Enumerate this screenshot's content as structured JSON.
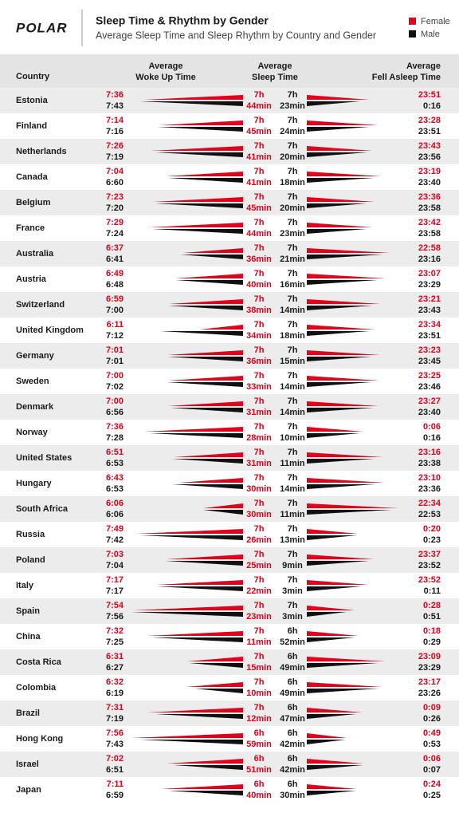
{
  "header": {
    "logo": "POLAR",
    "title": "Sleep Time & Rhythm by Gender",
    "subtitle": "Average Sleep Time and Sleep Rhythm by Country and Gender",
    "legend": [
      "Female",
      "Male"
    ]
  },
  "columns": {
    "country": "Country",
    "woke": [
      "Average",
      "Woke Up Time"
    ],
    "sleep": [
      "Average",
      "Sleep Time"
    ],
    "asleep": [
      "Average",
      "Fell Asleep Time"
    ]
  },
  "rows": [
    {
      "country": "Estonia",
      "woke": [
        "7:36",
        "7:43"
      ],
      "sleep": [
        [
          "7h",
          "44min"
        ],
        [
          "7h",
          "23min"
        ]
      ],
      "asleep": [
        "23:51",
        "0:16"
      ]
    },
    {
      "country": "Finland",
      "woke": [
        "7:14",
        "7:16"
      ],
      "sleep": [
        [
          "7h",
          "45min"
        ],
        [
          "7h",
          "24min"
        ]
      ],
      "asleep": [
        "23:28",
        "23:51"
      ]
    },
    {
      "country": "Netherlands",
      "woke": [
        "7:26",
        "7:19"
      ],
      "sleep": [
        [
          "7h",
          "41min"
        ],
        [
          "7h",
          "20min"
        ]
      ],
      "asleep": [
        "23:43",
        "23:56"
      ]
    },
    {
      "country": "Canada",
      "woke": [
        "7:04",
        "6:60"
      ],
      "sleep": [
        [
          "7h",
          "41min"
        ],
        [
          "7h",
          "18min"
        ]
      ],
      "asleep": [
        "23:19",
        "23:40"
      ]
    },
    {
      "country": "Belgium",
      "woke": [
        "7:23",
        "7:20"
      ],
      "sleep": [
        [
          "7h",
          "45min"
        ],
        [
          "7h",
          "20min"
        ]
      ],
      "asleep": [
        "23:36",
        "23:58"
      ]
    },
    {
      "country": "France",
      "woke": [
        "7:29",
        "7:24"
      ],
      "sleep": [
        [
          "7h",
          "44min"
        ],
        [
          "7h",
          "23min"
        ]
      ],
      "asleep": [
        "23:42",
        "23:58"
      ]
    },
    {
      "country": "Australia",
      "woke": [
        "6:37",
        "6:41"
      ],
      "sleep": [
        [
          "7h",
          "36min"
        ],
        [
          "7h",
          "21min"
        ]
      ],
      "asleep": [
        "22:58",
        "23:16"
      ]
    },
    {
      "country": "Austria",
      "woke": [
        "6:49",
        "6:48"
      ],
      "sleep": [
        [
          "7h",
          "40min"
        ],
        [
          "7h",
          "16min"
        ]
      ],
      "asleep": [
        "23:07",
        "23:29"
      ]
    },
    {
      "country": "Switzerland",
      "woke": [
        "6:59",
        "7:00"
      ],
      "sleep": [
        [
          "7h",
          "38min"
        ],
        [
          "7h",
          "14min"
        ]
      ],
      "asleep": [
        "23:21",
        "23:43"
      ]
    },
    {
      "country": "United Kingdom",
      "woke": [
        "6:11",
        "7:12"
      ],
      "sleep": [
        [
          "7h",
          "34min"
        ],
        [
          "7h",
          "18min"
        ]
      ],
      "asleep": [
        "23:34",
        "23:51"
      ]
    },
    {
      "country": "Germany",
      "woke": [
        "7:01",
        "7:01"
      ],
      "sleep": [
        [
          "7h",
          "36min"
        ],
        [
          "7h",
          "15min"
        ]
      ],
      "asleep": [
        "23:23",
        "23:45"
      ]
    },
    {
      "country": "Sweden",
      "woke": [
        "7:00",
        "7:02"
      ],
      "sleep": [
        [
          "7h",
          "33min"
        ],
        [
          "7h",
          "14min"
        ]
      ],
      "asleep": [
        "23:25",
        "23:46"
      ]
    },
    {
      "country": "Denmark",
      "woke": [
        "7:00",
        "6:56"
      ],
      "sleep": [
        [
          "7h",
          "31min"
        ],
        [
          "7h",
          "14min"
        ]
      ],
      "asleep": [
        "23:27",
        "23:40"
      ]
    },
    {
      "country": "Norway",
      "woke": [
        "7:36",
        "7:28"
      ],
      "sleep": [
        [
          "7h",
          "28min"
        ],
        [
          "7h",
          "10min"
        ]
      ],
      "asleep": [
        "0:06",
        "0:16"
      ]
    },
    {
      "country": "United States",
      "woke": [
        "6:51",
        "6:53"
      ],
      "sleep": [
        [
          "7h",
          "31min"
        ],
        [
          "7h",
          "11min"
        ]
      ],
      "asleep": [
        "23:16",
        "23:38"
      ]
    },
    {
      "country": "Hungary",
      "woke": [
        "6:43",
        "6:53"
      ],
      "sleep": [
        [
          "7h",
          "30min"
        ],
        [
          "7h",
          "14min"
        ]
      ],
      "asleep": [
        "23:10",
        "23:36"
      ]
    },
    {
      "country": "South Africa",
      "woke": [
        "6:06",
        "6:06"
      ],
      "sleep": [
        [
          "7h",
          "30min"
        ],
        [
          "7h",
          "11min"
        ]
      ],
      "asleep": [
        "22:34",
        "22:53"
      ]
    },
    {
      "country": "Russia",
      "woke": [
        "7:49",
        "7:42"
      ],
      "sleep": [
        [
          "7h",
          "26min"
        ],
        [
          "7h",
          "13min"
        ]
      ],
      "asleep": [
        "0:20",
        "0:23"
      ]
    },
    {
      "country": "Poland",
      "woke": [
        "7:03",
        "7:04"
      ],
      "sleep": [
        [
          "7h",
          "25min"
        ],
        [
          "7h",
          "9min"
        ]
      ],
      "asleep": [
        "23:37",
        "23:52"
      ]
    },
    {
      "country": "Italy",
      "woke": [
        "7:17",
        "7:17"
      ],
      "sleep": [
        [
          "7h",
          "22min"
        ],
        [
          "7h",
          "3min"
        ]
      ],
      "asleep": [
        "23:52",
        "0:11"
      ]
    },
    {
      "country": "Spain",
      "woke": [
        "7:54",
        "7:56"
      ],
      "sleep": [
        [
          "7h",
          "23min"
        ],
        [
          "7h",
          "3min"
        ]
      ],
      "asleep": [
        "0:28",
        "0:51"
      ]
    },
    {
      "country": "China",
      "woke": [
        "7:32",
        "7:25"
      ],
      "sleep": [
        [
          "7h",
          "11min"
        ],
        [
          "6h",
          "52min"
        ]
      ],
      "asleep": [
        "0:18",
        "0:29"
      ]
    },
    {
      "country": "Costa Rica",
      "woke": [
        "6:31",
        "6:27"
      ],
      "sleep": [
        [
          "7h",
          "15min"
        ],
        [
          "6h",
          "49min"
        ]
      ],
      "asleep": [
        "23:09",
        "23:29"
      ]
    },
    {
      "country": "Colombia",
      "woke": [
        "6:32",
        "6:19"
      ],
      "sleep": [
        [
          "7h",
          "10min"
        ],
        [
          "6h",
          "49min"
        ]
      ],
      "asleep": [
        "23:17",
        "23:26"
      ]
    },
    {
      "country": "Brazil",
      "woke": [
        "7:31",
        "7:19"
      ],
      "sleep": [
        [
          "7h",
          "12min"
        ],
        [
          "6h",
          "47min"
        ]
      ],
      "asleep": [
        "0:09",
        "0:26"
      ]
    },
    {
      "country": "Hong Kong",
      "woke": [
        "7:56",
        "7:43"
      ],
      "sleep": [
        [
          "6h",
          "59min"
        ],
        [
          "6h",
          "42min"
        ]
      ],
      "asleep": [
        "0:49",
        "0:53"
      ]
    },
    {
      "country": "Israel",
      "woke": [
        "7:02",
        "6:51"
      ],
      "sleep": [
        [
          "6h",
          "51min"
        ],
        [
          "6h",
          "42min"
        ]
      ],
      "asleep": [
        "0:06",
        "0:07"
      ]
    },
    {
      "country": "Japan",
      "woke": [
        "7:11",
        "6:59"
      ],
      "sleep": [
        [
          "6h",
          "40min"
        ],
        [
          "6h",
          "30min"
        ]
      ],
      "asleep": [
        "0:24",
        "0:25"
      ]
    }
  ]
}
